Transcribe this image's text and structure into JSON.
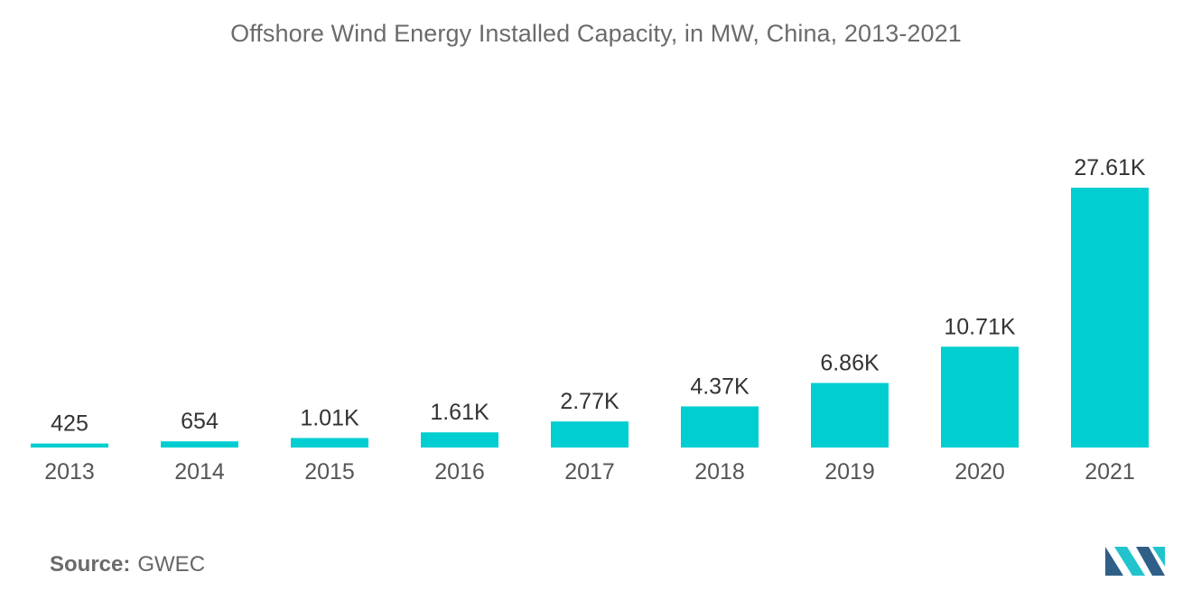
{
  "chart_data": {
    "type": "bar",
    "title": "Offshore Wind Energy Installed Capacity, in MW, China, 2013-2021",
    "categories": [
      "2013",
      "2014",
      "2015",
      "2016",
      "2017",
      "2018",
      "2019",
      "2020",
      "2021"
    ],
    "values": [
      425,
      654,
      1010,
      1610,
      2770,
      4370,
      6860,
      10710,
      27610
    ],
    "data_labels": [
      "425",
      "654",
      "1.01K",
      "1.61K",
      "2.77K",
      "4.37K",
      "6.86K",
      "10.71K",
      "27.61K"
    ],
    "xlabel": "",
    "ylabel": "",
    "ylim": [
      0,
      27610
    ],
    "grid": false,
    "legend": "none",
    "bar_color": "#00CED1"
  },
  "source": {
    "label": "Source:",
    "value": "GWEC"
  },
  "colors": {
    "logo_dark": "#2f5f87",
    "logo_light": "#22c4cc"
  }
}
